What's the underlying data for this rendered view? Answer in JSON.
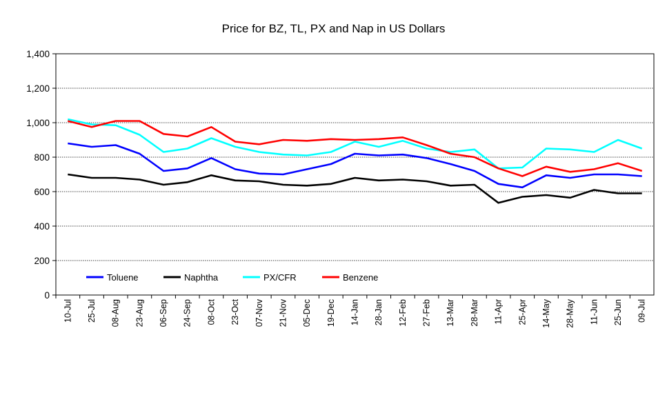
{
  "chart_data": {
    "type": "line",
    "title": "Price for BZ, TL, PX and Nap in US Dollars",
    "xlabel": "",
    "ylabel": "",
    "ylim": [
      0,
      1400
    ],
    "yticks": [
      "0",
      "200",
      "400",
      "600",
      "800",
      "1,000",
      "1,200",
      "1,400"
    ],
    "ytick_values": [
      0,
      200,
      400,
      600,
      800,
      1000,
      1200,
      1400
    ],
    "grid": "horizontal dotted",
    "legend_position": "bottom-left inside",
    "x": [
      "10-Jul",
      "25-Jul",
      "08-Aug",
      "23-Aug",
      "06-Sep",
      "24-Sep",
      "08-Oct",
      "23-Oct",
      "07-Nov",
      "21-Nov",
      "05-Dec",
      "19-Dec",
      "14-Jan",
      "28-Jan",
      "12-Feb",
      "27-Feb",
      "13-Mar",
      "28-Mar",
      "11-Apr",
      "25-Apr",
      "14-May",
      "28-May",
      "11-Jun",
      "25-Jun",
      "09-Jul"
    ],
    "series": [
      {
        "name": "Toluene",
        "color": "#0000ff",
        "values": [
          880,
          860,
          870,
          820,
          720,
          735,
          795,
          730,
          705,
          700,
          730,
          760,
          820,
          810,
          815,
          795,
          760,
          720,
          645,
          625,
          695,
          680,
          700,
          700,
          690
        ]
      },
      {
        "name": "Naphtha",
        "color": "#000000",
        "values": [
          700,
          680,
          680,
          670,
          640,
          655,
          695,
          665,
          660,
          640,
          635,
          645,
          680,
          665,
          670,
          660,
          635,
          640,
          535,
          570,
          580,
          565,
          610,
          590,
          590
        ]
      },
      {
        "name": "PX/CFR",
        "color": "#00ffff",
        "values": [
          1020,
          990,
          985,
          930,
          830,
          850,
          910,
          860,
          830,
          815,
          810,
          830,
          890,
          860,
          895,
          850,
          830,
          845,
          735,
          740,
          850,
          845,
          830,
          900,
          850
        ]
      },
      {
        "name": "Benzene",
        "color": "#ff0000",
        "values": [
          1010,
          975,
          1010,
          1010,
          935,
          920,
          975,
          890,
          875,
          900,
          895,
          905,
          900,
          905,
          915,
          870,
          820,
          800,
          735,
          690,
          745,
          715,
          730,
          765,
          720
        ]
      }
    ]
  }
}
